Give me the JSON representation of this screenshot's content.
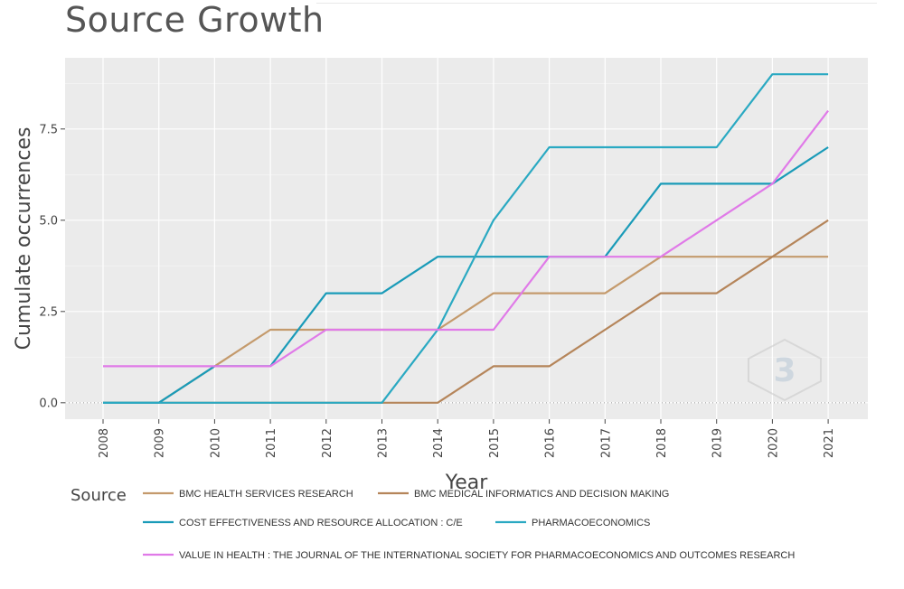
{
  "page": {
    "title": "Source Growth"
  },
  "chart_data": {
    "type": "line",
    "title": "Source Growth",
    "xlabel": "Year",
    "ylabel": "Cumulate occurrences",
    "x": [
      2008,
      2009,
      2010,
      2011,
      2012,
      2013,
      2014,
      2015,
      2016,
      2017,
      2018,
      2019,
      2020,
      2021
    ],
    "x_tick_labels": [
      "2008",
      "2009",
      "2010",
      "2011",
      "2012",
      "2013",
      "2014",
      "2015",
      "2016",
      "2017",
      "2018",
      "2019",
      "2020",
      "2021"
    ],
    "y_ticks": [
      0,
      2.5,
      5,
      7.5
    ],
    "y_tick_labels": [
      "0.0",
      "2.5",
      "5.0",
      "7.5"
    ],
    "ylim": [
      -0.45,
      9.45
    ],
    "grid": true,
    "legend_title": "Source",
    "legend_position": "bottom",
    "series": [
      {
        "name": "BMC HEALTH SERVICES RESEARCH",
        "color": "#c49a6c",
        "values": [
          0,
          0,
          1,
          2,
          2,
          2,
          2,
          3,
          3,
          3,
          4,
          4,
          4,
          4
        ]
      },
      {
        "name": "BMC MEDICAL INFORMATICS AND DECISION MAKING",
        "color": "#b5855a",
        "values": [
          0,
          0,
          0,
          0,
          0,
          0,
          0,
          1,
          1,
          2,
          3,
          3,
          4,
          5
        ]
      },
      {
        "name": "COST EFFECTIVENESS AND RESOURCE ALLOCATION : C/E",
        "color": "#1a9bb8",
        "values": [
          0,
          0,
          1,
          1,
          3,
          3,
          4,
          4,
          4,
          4,
          6,
          6,
          6,
          7
        ]
      },
      {
        "name": "PHARMACOECONOMICS",
        "color": "#2aa9c2",
        "values": [
          0,
          0,
          0,
          0,
          0,
          0,
          2,
          5,
          7,
          7,
          7,
          7,
          9,
          9
        ]
      },
      {
        "name": "VALUE IN HEALTH : THE JOURNAL OF THE INTERNATIONAL SOCIETY FOR PHARMACOECONOMICS AND OUTCOMES RESEARCH",
        "color": "#e07ae8",
        "values": [
          1,
          1,
          1,
          1,
          2,
          2,
          2,
          2,
          4,
          4,
          4,
          5,
          6,
          8
        ]
      }
    ]
  }
}
